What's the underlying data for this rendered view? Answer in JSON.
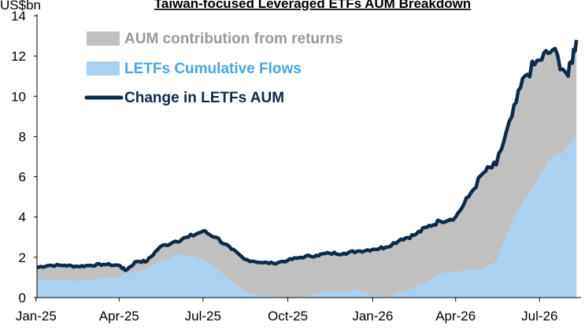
{
  "chart_data": {
    "type": "area",
    "title": "Taiwan-focused Leveraged ETFs AUM Breakdown",
    "ylabel": "US$bn",
    "xlabel": "",
    "ylim": [
      0,
      14
    ],
    "yticks": [
      "0",
      "2",
      "4",
      "6",
      "8",
      "10",
      "12",
      "14"
    ],
    "xlim": [
      "2025-01-02",
      "2026-08-15"
    ],
    "xticks": [
      {
        "label": "Jan-25",
        "date": "2025-01-01"
      },
      {
        "label": "Apr-25",
        "date": "2025-04-01"
      },
      {
        "label": "Jul-25",
        "date": "2025-07-01"
      },
      {
        "label": "Oct-25",
        "date": "2025-10-01"
      },
      {
        "label": "Jan-26",
        "date": "2026-01-01"
      },
      {
        "label": "Apr-26",
        "date": "2026-04-01"
      },
      {
        "label": "Jul-26",
        "date": "2026-07-01"
      }
    ],
    "grid": false,
    "legend_position": "top-left",
    "series": [
      {
        "name": "AUM contribution from returns",
        "kind": "stacked-area-top",
        "color": "#c0c0c0",
        "points": [
          [
            "2025-01-02",
            1.5
          ],
          [
            "2025-01-15",
            1.6
          ],
          [
            "2025-02-01",
            1.6
          ],
          [
            "2025-02-15",
            1.55
          ],
          [
            "2025-03-01",
            1.6
          ],
          [
            "2025-03-15",
            1.65
          ],
          [
            "2025-04-01",
            1.6
          ],
          [
            "2025-04-08",
            1.35
          ],
          [
            "2025-04-20",
            1.8
          ],
          [
            "2025-05-01",
            1.8
          ],
          [
            "2025-05-15",
            2.5
          ],
          [
            "2025-06-01",
            2.8
          ],
          [
            "2025-06-15",
            3.0
          ],
          [
            "2025-07-01",
            3.3
          ],
          [
            "2025-07-15",
            3.0
          ],
          [
            "2025-08-01",
            2.4
          ],
          [
            "2025-08-15",
            1.9
          ],
          [
            "2025-09-01",
            1.75
          ],
          [
            "2025-09-15",
            1.7
          ],
          [
            "2025-10-01",
            1.85
          ],
          [
            "2025-10-15",
            2.0
          ],
          [
            "2025-11-01",
            2.1
          ],
          [
            "2025-11-15",
            2.2
          ],
          [
            "2025-12-01",
            2.2
          ],
          [
            "2025-12-15",
            2.3
          ],
          [
            "2026-01-01",
            2.4
          ],
          [
            "2026-01-15",
            2.5
          ],
          [
            "2026-02-01",
            2.9
          ],
          [
            "2026-02-15",
            3.1
          ],
          [
            "2026-03-01",
            3.5
          ],
          [
            "2026-03-15",
            3.8
          ],
          [
            "2026-04-01",
            4.0
          ],
          [
            "2026-04-15",
            5.0
          ],
          [
            "2026-05-01",
            6.2
          ],
          [
            "2026-05-15",
            6.6
          ],
          [
            "2026-06-01",
            9.0
          ],
          [
            "2026-06-15",
            11.0
          ],
          [
            "2026-07-01",
            11.8
          ],
          [
            "2026-07-15",
            12.3
          ],
          [
            "2026-08-01",
            11.0
          ],
          [
            "2026-08-10",
            12.8
          ]
        ]
      },
      {
        "name": "LETFs Cumulative Flows",
        "kind": "area",
        "color": "#aad2f0",
        "points": [
          [
            "2025-01-02",
            0.9
          ],
          [
            "2025-01-15",
            0.85
          ],
          [
            "2025-02-01",
            0.9
          ],
          [
            "2025-02-15",
            0.8
          ],
          [
            "2025-03-01",
            0.9
          ],
          [
            "2025-03-15",
            1.0
          ],
          [
            "2025-04-01",
            1.0
          ],
          [
            "2025-04-08",
            1.2
          ],
          [
            "2025-04-20",
            1.3
          ],
          [
            "2025-05-01",
            1.4
          ],
          [
            "2025-05-15",
            1.8
          ],
          [
            "2025-06-01",
            2.1
          ],
          [
            "2025-06-15",
            2.1
          ],
          [
            "2025-07-01",
            1.9
          ],
          [
            "2025-07-15",
            1.5
          ],
          [
            "2025-08-01",
            0.8
          ],
          [
            "2025-08-15",
            0.3
          ],
          [
            "2025-09-01",
            0.1
          ],
          [
            "2025-09-15",
            0.05
          ],
          [
            "2025-10-01",
            0.0
          ],
          [
            "2025-10-15",
            0.0
          ],
          [
            "2025-11-01",
            0.2
          ],
          [
            "2025-11-15",
            0.3
          ],
          [
            "2025-12-01",
            0.3
          ],
          [
            "2025-12-15",
            0.4
          ],
          [
            "2026-01-01",
            0.1
          ],
          [
            "2026-01-15",
            0.0
          ],
          [
            "2026-02-01",
            0.3
          ],
          [
            "2026-02-15",
            0.5
          ],
          [
            "2026-03-01",
            0.8
          ],
          [
            "2026-03-15",
            1.2
          ],
          [
            "2026-04-01",
            1.3
          ],
          [
            "2026-04-15",
            1.4
          ],
          [
            "2026-05-01",
            1.4
          ],
          [
            "2026-05-15",
            1.8
          ],
          [
            "2026-06-01",
            3.8
          ],
          [
            "2026-06-15",
            4.9
          ],
          [
            "2026-07-01",
            6.0
          ],
          [
            "2026-07-15",
            7.0
          ],
          [
            "2026-08-01",
            7.5
          ],
          [
            "2026-08-10",
            8.0
          ]
        ]
      },
      {
        "name": "Change in LETFs AUM",
        "kind": "line",
        "color": "#0c2b4a",
        "points": [
          [
            "2025-01-02",
            1.5
          ],
          [
            "2025-01-15",
            1.6
          ],
          [
            "2025-02-01",
            1.6
          ],
          [
            "2025-02-15",
            1.55
          ],
          [
            "2025-03-01",
            1.6
          ],
          [
            "2025-03-15",
            1.65
          ],
          [
            "2025-04-01",
            1.6
          ],
          [
            "2025-04-08",
            1.35
          ],
          [
            "2025-04-20",
            1.8
          ],
          [
            "2025-05-01",
            1.8
          ],
          [
            "2025-05-15",
            2.5
          ],
          [
            "2025-06-01",
            2.8
          ],
          [
            "2025-06-15",
            3.0
          ],
          [
            "2025-07-01",
            3.3
          ],
          [
            "2025-07-15",
            3.0
          ],
          [
            "2025-08-01",
            2.4
          ],
          [
            "2025-08-15",
            1.9
          ],
          [
            "2025-09-01",
            1.75
          ],
          [
            "2025-09-15",
            1.7
          ],
          [
            "2025-10-01",
            1.85
          ],
          [
            "2025-10-15",
            2.0
          ],
          [
            "2025-11-01",
            2.1
          ],
          [
            "2025-11-15",
            2.2
          ],
          [
            "2025-12-01",
            2.2
          ],
          [
            "2025-12-15",
            2.3
          ],
          [
            "2026-01-01",
            2.4
          ],
          [
            "2026-01-15",
            2.5
          ],
          [
            "2026-02-01",
            2.9
          ],
          [
            "2026-02-15",
            3.1
          ],
          [
            "2026-03-01",
            3.5
          ],
          [
            "2026-03-15",
            3.8
          ],
          [
            "2026-04-01",
            4.0
          ],
          [
            "2026-04-15",
            5.0
          ],
          [
            "2026-05-01",
            6.2
          ],
          [
            "2026-05-15",
            6.6
          ],
          [
            "2026-06-01",
            9.0
          ],
          [
            "2026-06-15",
            11.0
          ],
          [
            "2026-07-01",
            11.8
          ],
          [
            "2026-07-15",
            12.3
          ],
          [
            "2026-08-01",
            11.0
          ],
          [
            "2026-08-10",
            12.8
          ]
        ]
      }
    ]
  }
}
